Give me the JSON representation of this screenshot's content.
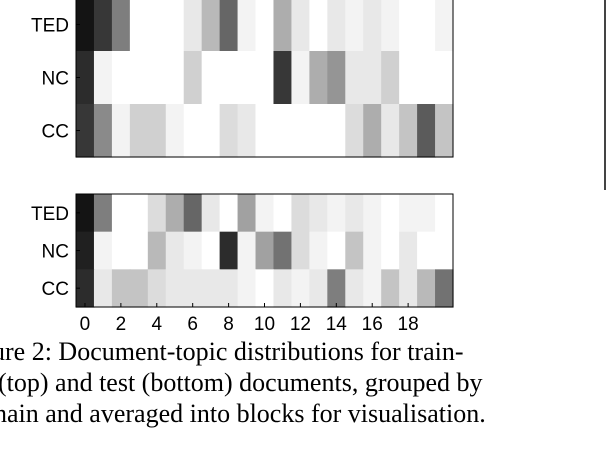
{
  "chart_data": [
    {
      "type": "heatmap",
      "title": "",
      "xlabel": "",
      "ylabel": "",
      "row_labels": [
        "TED",
        "NC",
        "CC"
      ],
      "x_ticks": [],
      "colormap": "gray_r (0 = white, 1 = black)",
      "values": [
        [
          1.0,
          0.85,
          0.55,
          0.0,
          0.0,
          0.0,
          0.1,
          0.3,
          0.65,
          0.05,
          0.0,
          0.35,
          0.1,
          0.0,
          0.1,
          0.05,
          0.1,
          0.05,
          0.0,
          0.0,
          0.05
        ],
        [
          0.9,
          0.05,
          0.0,
          0.0,
          0.0,
          0.0,
          0.2,
          0.0,
          0.0,
          0.0,
          0.0,
          0.85,
          0.05,
          0.35,
          0.45,
          0.1,
          0.1,
          0.2,
          0.0,
          0.0,
          0.0
        ],
        [
          0.85,
          0.5,
          0.05,
          0.2,
          0.2,
          0.05,
          0.0,
          0.0,
          0.15,
          0.1,
          0.0,
          0.0,
          0.0,
          0.0,
          0.0,
          0.15,
          0.35,
          0.1,
          0.25,
          0.7,
          0.25
        ]
      ]
    },
    {
      "type": "heatmap",
      "title": "",
      "xlabel": "",
      "ylabel": "",
      "row_labels": [
        "TED",
        "NC",
        "CC"
      ],
      "x_ticks": [
        "0",
        "2",
        "4",
        "6",
        "8",
        "10",
        "12",
        "14",
        "16",
        "18"
      ],
      "colormap": "gray_r (0 = white, 1 = black)",
      "values": [
        [
          1.0,
          0.55,
          0.0,
          0.0,
          0.15,
          0.35,
          0.65,
          0.1,
          0.0,
          0.4,
          0.05,
          0.0,
          0.15,
          0.1,
          0.05,
          0.1,
          0.05,
          0.0,
          0.05,
          0.05,
          0.0
        ],
        [
          0.95,
          0.05,
          0.0,
          0.0,
          0.3,
          0.1,
          0.05,
          0.0,
          0.9,
          0.05,
          0.4,
          0.6,
          0.15,
          0.05,
          0.0,
          0.25,
          0.05,
          0.0,
          0.1,
          0.0,
          0.0
        ],
        [
          0.9,
          0.1,
          0.25,
          0.25,
          0.15,
          0.1,
          0.1,
          0.1,
          0.1,
          0.05,
          0.0,
          0.1,
          0.05,
          0.1,
          0.55,
          0.1,
          0.05,
          0.25,
          0.1,
          0.3,
          0.6
        ]
      ]
    }
  ],
  "caption_lines": [
    "ure 2: Document-topic distributions for train-",
    "(top) and test (bottom) documents, grouped by",
    "nain and averaged into blocks for visualisation."
  ]
}
